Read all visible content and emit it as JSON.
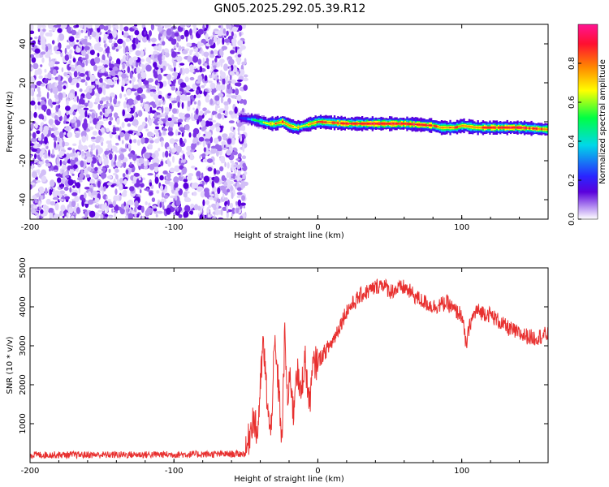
{
  "title": "GN05.2025.292.05.39.R12",
  "colors": {
    "snr_line": "#e8302f",
    "frame": "#000000",
    "background": "#ffffff"
  },
  "chart_data": [
    {
      "type": "heatmap",
      "xlabel": "Height of straight line (km)",
      "ylabel": "Frequency (Hz)",
      "xlim": [
        -200,
        160
      ],
      "ylim": [
        -50,
        50
      ],
      "xticks": [
        -200,
        -100,
        0,
        100
      ],
      "yticks": [
        -40,
        -20,
        0,
        20,
        40
      ],
      "colorbar": {
        "label": "Normalized spectral amplitude",
        "range": [
          0,
          1
        ],
        "ticks": [
          "0.0",
          "0.2",
          "0.4",
          "0.6",
          "0.8"
        ],
        "ticks_values": [
          0.0,
          0.2,
          0.4,
          0.6,
          0.8
        ],
        "palette": [
          "#ffffff",
          "#b894f2",
          "#5a00dc",
          "#2a25ff",
          "#00d8e8",
          "#00ff44",
          "#ffff00",
          "#ff8800",
          "#ff1030",
          "#ff1493"
        ]
      },
      "noise_region_x": [
        -200,
        -50
      ],
      "signal_track": {
        "x": [
          -55,
          -45,
          -40,
          -35,
          -30,
          -25,
          -20,
          -15,
          -10,
          0,
          20,
          40,
          60,
          80,
          85,
          95,
          100,
          110,
          120,
          140,
          160
        ],
        "frequency": [
          2,
          1,
          0,
          -1,
          -1,
          0,
          -2,
          -3,
          -2,
          0,
          -1,
          -1,
          -1,
          -2,
          -3,
          -3,
          -2,
          -3,
          -3,
          -3,
          -4
        ],
        "amplitude": [
          0.3,
          0.5,
          0.6,
          0.7,
          0.8,
          0.85,
          0.8,
          0.75,
          0.7,
          0.85,
          0.9,
          0.95,
          0.95,
          0.9,
          0.8,
          0.85,
          0.8,
          0.8,
          0.9,
          0.95,
          0.8
        ]
      }
    },
    {
      "type": "line",
      "xlabel": "Height of straight line (km)",
      "ylabel": "SNR (10 * v/v)",
      "xlim": [
        -200,
        160
      ],
      "ylim": [
        0,
        5000
      ],
      "xticks": [
        -200,
        -100,
        0,
        100
      ],
      "yticks": [
        1000,
        2000,
        3000,
        4000,
        5000
      ],
      "series": [
        {
          "name": "SNR",
          "x": [
            -200,
            -150,
            -100,
            -60,
            -50,
            -45,
            -42,
            -38,
            -35,
            -33,
            -30,
            -27,
            -25,
            -23,
            -21,
            -19,
            -17,
            -15,
            -12,
            -9,
            -6,
            -3,
            0,
            10,
            20,
            30,
            40,
            45,
            50,
            60,
            70,
            80,
            90,
            95,
            100,
            103,
            106,
            110,
            120,
            130,
            140,
            150,
            160
          ],
          "y": [
            200,
            200,
            210,
            220,
            230,
            1200,
            700,
            3100,
            1500,
            600,
            3000,
            1800,
            500,
            3300,
            1500,
            2300,
            1200,
            2500,
            1700,
            2700,
            1500,
            2500,
            2600,
            3100,
            3900,
            4300,
            4500,
            4600,
            4400,
            4500,
            4200,
            4000,
            4100,
            3900,
            3800,
            3000,
            3600,
            3900,
            3800,
            3500,
            3300,
            3200,
            3300
          ]
        }
      ]
    }
  ]
}
